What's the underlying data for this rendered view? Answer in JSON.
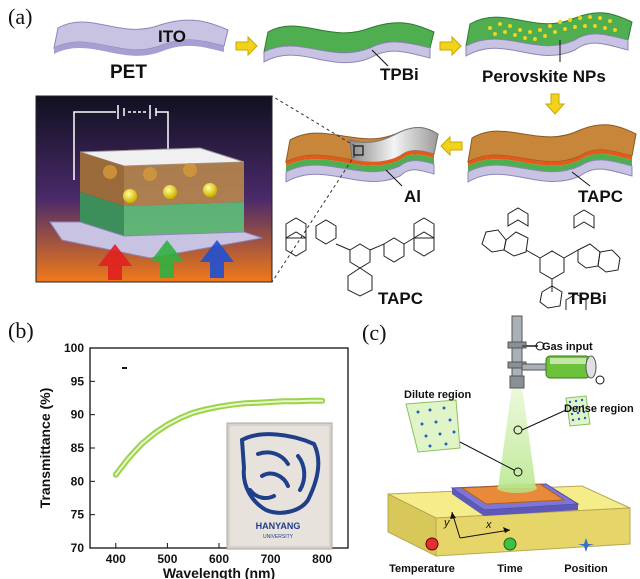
{
  "panel_a": {
    "label": "(a)",
    "layers": {
      "ito": "ITO",
      "pet": "PET",
      "tpbi": "TPBi",
      "perovskite": "Perovskite NPs",
      "tapc": "TAPC",
      "al": "Al"
    },
    "molecules": {
      "tapc": "TAPC",
      "tpbi": "TPBi"
    },
    "colors": {
      "substrate": "#c9c3e3",
      "ito": "#a79ed1",
      "tpbi": "#4fae4f",
      "tapc": "#c8863b",
      "al": "#bdbdbd",
      "arrow": "#f2d21b"
    }
  },
  "panel_b": {
    "label": "(b)",
    "inset_text": "HANYANG",
    "inset_subtext": "UNIVERSITY"
  },
  "panel_c": {
    "label": "(c)",
    "gas_input": "Gas input",
    "dilute_region": "Dilute region",
    "dense_region": "Dense region",
    "axis_x": "x",
    "axis_y": "y",
    "legend": [
      "Temperature",
      "Time",
      "Position"
    ]
  },
  "chart_data": {
    "type": "line",
    "title": "",
    "xlabel": "Wavelength (nm)",
    "ylabel": "Transmittance (%)",
    "xlim": [
      350,
      850
    ],
    "ylim": [
      70,
      100
    ],
    "xticks": [
      400,
      500,
      600,
      700,
      800
    ],
    "yticks": [
      70,
      75,
      80,
      85,
      90,
      95,
      100
    ],
    "series": [
      {
        "color": "#9bd44a",
        "x": [
          400,
          425,
          450,
          475,
          500,
          525,
          550,
          575,
          600,
          625,
          650,
          675,
          700,
          725,
          750,
          775,
          800
        ],
        "y": [
          81.0,
          83.5,
          85.6,
          87.2,
          88.5,
          89.5,
          90.3,
          90.8,
          91.2,
          91.5,
          91.7,
          91.8,
          91.9,
          92.0,
          92.0,
          92.1,
          92.1
        ]
      }
    ]
  }
}
